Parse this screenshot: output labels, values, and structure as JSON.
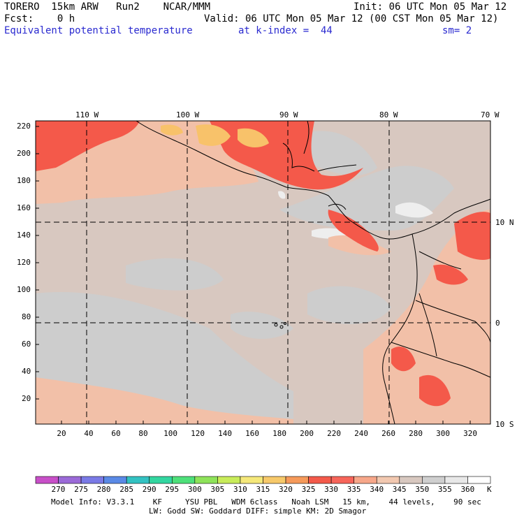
{
  "header": {
    "model": "TORERO  15km ARW   Run2    NCAR/MMM",
    "init": "Init: 06 UTC Mon 05 Mar 12",
    "fcst": "Fcst:    0 h",
    "valid": "Valid: 06 UTC Mon 05 Mar 12 (00 CST Mon 05 Mar 12)",
    "field": "Equivalent potential temperature",
    "level": "at k-index =  44",
    "smooth": "sm= 2"
  },
  "lon_labels": [
    "110 W",
    "100 W",
    "90 W",
    "80 W",
    "70 W"
  ],
  "lat_labels": [
    "10 N",
    "0",
    "10 S"
  ],
  "y_ticks": [
    "20",
    "40",
    "60",
    "80",
    "100",
    "120",
    "140",
    "160",
    "180",
    "200",
    "220"
  ],
  "x_ticks": [
    "20",
    "40",
    "60",
    "80",
    "100",
    "120",
    "140",
    "160",
    "180",
    "200",
    "220",
    "240",
    "260",
    "280",
    "300",
    "320"
  ],
  "colorbar": {
    "labels": [
      "270",
      "275",
      "280",
      "285",
      "290",
      "295",
      "300",
      "305",
      "310",
      "315",
      "320",
      "325",
      "330",
      "335",
      "340",
      "345",
      "350",
      "355",
      "360"
    ],
    "unit": "K",
    "colors": [
      "#c84fc8",
      "#9b6ad8",
      "#7a7ae6",
      "#5a8ae6",
      "#33c2c2",
      "#33d6a0",
      "#4ee07a",
      "#8ee35a",
      "#c8ec5a",
      "#f5e87a",
      "#f7c96a",
      "#f69a5a",
      "#f45a4a",
      "#f7655a",
      "#f7a78a",
      "#f2c8b0",
      "#d8c8c0",
      "#cfcfcf",
      "#e8e8e8",
      "#ffffff"
    ]
  },
  "footer": {
    "line1": "Model Info: V3.3.1    KF     YSU PBL   WDM 6class   Noah LSM   15 km,    44 levels,    90 sec",
    "line2": "LW: Godd SW: Goddard DIFF: simple KM: 2D Smagor"
  }
}
